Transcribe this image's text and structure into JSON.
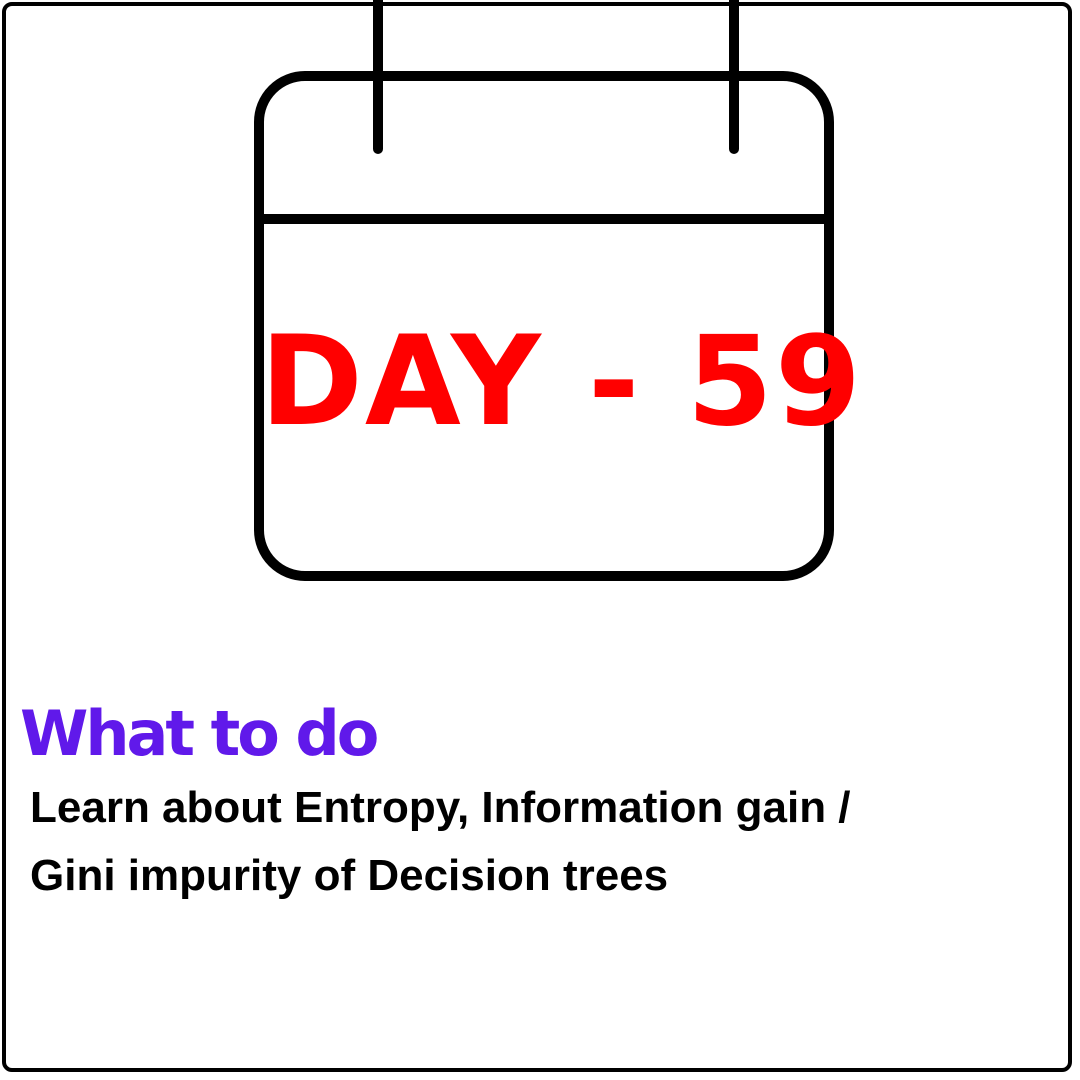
{
  "colors": {
    "day_title": "#ff0000",
    "heading": "#6019ea",
    "outline": "#000000",
    "background": "#ffffff"
  },
  "calendar": {
    "icon": "calendar-icon",
    "title": "DAY - 59"
  },
  "section": {
    "heading": "What to do",
    "task_lines": [
      "Learn about Entropy, Information gain /",
      "Gini impurity of Decision trees"
    ]
  }
}
